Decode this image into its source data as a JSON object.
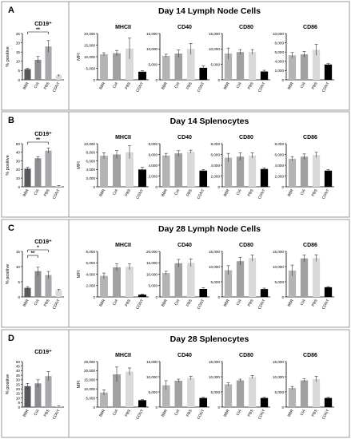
{
  "sections": [
    {
      "letter": "A",
      "title": "Day 14 Lymph Node Cells"
    },
    {
      "letter": "B",
      "title": "Day 14 Splenocytes"
    },
    {
      "letter": "C",
      "title": "Day 28 Lymph Node Cells"
    },
    {
      "letter": "D",
      "title": "Day 28 Splenocytes"
    }
  ],
  "colors": {
    "BBR": "#58595b",
    "CIA": "#8c8d90",
    "PBS": "#a8a9ad",
    "CONT": "#d9d9db",
    "BBR_mfi": "#b3b4b6",
    "CIA_mfi": "#a0a1a3",
    "PBS_mfi": "#d8d9db",
    "CONT_mfi": "#000000",
    "sig": "#c00000",
    "frame": "#9a9a9a"
  },
  "chart_data": [
    {
      "type": "bar",
      "row": 0,
      "title": "CD19⁺",
      "ylabel": "% positive",
      "categories": [
        "BBR",
        "CIA",
        "PBS",
        "CONT"
      ],
      "values": [
        5.8,
        10.8,
        18,
        2.2
      ],
      "errors": [
        0.4,
        1.8,
        3.2,
        0.4
      ],
      "ylim": [
        0,
        25
      ],
      "yticks": [
        0,
        5,
        10,
        15,
        20,
        25
      ],
      "significance": [
        {
          "from": 0,
          "to": 2,
          "label": "**"
        }
      ]
    },
    {
      "type": "bar",
      "row": 0,
      "title": "MHCII",
      "ylabel": "MFI",
      "categories": [
        "BBR",
        "CIA",
        "PBS",
        "CONT"
      ],
      "values": [
        11000,
        11500,
        13500,
        3500
      ],
      "errors": [
        700,
        1200,
        4500,
        400
      ],
      "ylim": [
        0,
        20000
      ],
      "yticks": [
        0,
        5000,
        10000,
        15000,
        20000
      ],
      "yticklabels": [
        "0",
        "5,000",
        "10,000",
        "15,000",
        "20,000"
      ]
    },
    {
      "type": "bar",
      "row": 0,
      "title": "CD40",
      "categories": [
        "BBR",
        "CIA",
        "PBS",
        "CONT"
      ],
      "values": [
        7800,
        8500,
        10000,
        3900
      ],
      "errors": [
        500,
        1200,
        1800,
        600
      ],
      "ylim": [
        0,
        15000
      ],
      "yticks": [
        0,
        5000,
        10000,
        15000
      ],
      "yticklabels": [
        "0",
        "5,000",
        "10,000",
        "15,000"
      ]
    },
    {
      "type": "bar",
      "row": 0,
      "title": "CD80",
      "categories": [
        "BBR",
        "CIA",
        "PBS",
        "CONT"
      ],
      "values": [
        8500,
        9000,
        9000,
        2700
      ],
      "errors": [
        1800,
        800,
        800,
        400
      ],
      "ylim": [
        0,
        15000
      ],
      "yticks": [
        0,
        5000,
        10000,
        15000
      ],
      "yticklabels": [
        "0",
        "5,000",
        "10,000",
        "15,000"
      ]
    },
    {
      "type": "bar",
      "row": 0,
      "title": "CD86",
      "categories": [
        "BBR",
        "CIA",
        "PBS",
        "CONT"
      ],
      "values": [
        5300,
        5500,
        6500,
        3300
      ],
      "errors": [
        600,
        600,
        1200,
        200
      ],
      "ylim": [
        0,
        10000
      ],
      "yticks": [
        0,
        2000,
        4000,
        6000,
        8000,
        10000
      ],
      "yticklabels": [
        "0",
        "2,000",
        "4,000",
        "6,000",
        "8,000",
        "10,000"
      ]
    },
    {
      "type": "bar",
      "row": 1,
      "title": "CD19⁺",
      "ylabel": "% positive",
      "categories": [
        "BBR",
        "CIA",
        "PBS",
        "CONT"
      ],
      "values": [
        21,
        33,
        42,
        1
      ],
      "errors": [
        1.5,
        2,
        3,
        0.5
      ],
      "ylim": [
        0,
        50
      ],
      "yticks": [
        0,
        10,
        20,
        30,
        40,
        50
      ],
      "significance": [
        {
          "from": 0,
          "to": 2,
          "label": "**"
        }
      ]
    },
    {
      "type": "bar",
      "row": 1,
      "title": "MHCII",
      "ylabel": "MFI",
      "categories": [
        "BBR",
        "CIA",
        "PBS",
        "CONT"
      ],
      "values": [
        7200,
        7500,
        8000,
        4000
      ],
      "errors": [
        700,
        900,
        1500,
        500
      ],
      "ylim": [
        0,
        10000
      ],
      "yticks": [
        0,
        2000,
        4000,
        6000,
        8000,
        10000
      ],
      "yticklabels": [
        "0",
        "2,000",
        "4,000",
        "6,000",
        "8,000",
        "10,000"
      ]
    },
    {
      "type": "bar",
      "row": 1,
      "title": "CD40",
      "categories": [
        "BBR",
        "CIA",
        "PBS",
        "CONT"
      ],
      "values": [
        5800,
        6200,
        6500,
        3000
      ],
      "errors": [
        400,
        500,
        300,
        200
      ],
      "ylim": [
        0,
        8000
      ],
      "yticks": [
        0,
        2000,
        4000,
        6000,
        8000
      ],
      "yticklabels": [
        "0",
        "2,000",
        "4,000",
        "6,000",
        "8,000"
      ]
    },
    {
      "type": "bar",
      "row": 1,
      "title": "CD80",
      "categories": [
        "BBR",
        "CIA",
        "PBS",
        "CONT"
      ],
      "values": [
        5400,
        5600,
        5800,
        3300
      ],
      "errors": [
        800,
        700,
        500,
        200
      ],
      "ylim": [
        0,
        8000
      ],
      "yticks": [
        0,
        2000,
        4000,
        6000,
        8000
      ],
      "yticklabels": [
        "0",
        "2,000",
        "4,000",
        "6,000",
        "8,000"
      ]
    },
    {
      "type": "bar",
      "row": 1,
      "title": "CD86",
      "categories": [
        "BBR",
        "CIA",
        "PBS",
        "CONT"
      ],
      "values": [
        5200,
        5600,
        5900,
        3000
      ],
      "errors": [
        400,
        500,
        500,
        200
      ],
      "ylim": [
        0,
        8000
      ],
      "yticks": [
        0,
        2000,
        4000,
        6000,
        8000
      ],
      "yticklabels": [
        "0",
        "2,000",
        "4,000",
        "6,000",
        "8,000"
      ]
    },
    {
      "type": "bar",
      "row": 2,
      "title": "CD19⁺",
      "ylabel": "% positive",
      "categories": [
        "BBR",
        "CIA",
        "PBS",
        "CONT"
      ],
      "values": [
        3,
        8.5,
        7.2,
        2.2
      ],
      "errors": [
        0.4,
        1.3,
        1.2,
        0.3
      ],
      "ylim": [
        0,
        15
      ],
      "yticks": [
        0,
        5,
        10,
        15
      ],
      "significance": [
        {
          "from": 0,
          "to": 2,
          "label": "*"
        },
        {
          "from": 0,
          "to": 1,
          "label": "**"
        }
      ]
    },
    {
      "type": "bar",
      "row": 2,
      "title": "MHCII",
      "ylabel": "MFI",
      "categories": [
        "BBR",
        "CIA",
        "PBS",
        "CONT"
      ],
      "values": [
        3700,
        5200,
        5300,
        400
      ],
      "errors": [
        500,
        600,
        500,
        100
      ],
      "ylim": [
        0,
        8000
      ],
      "yticks": [
        0,
        2000,
        4000,
        6000,
        8000
      ],
      "yticklabels": [
        "0",
        "2,000",
        "4,000",
        "6,000",
        "8,000"
      ]
    },
    {
      "type": "bar",
      "row": 2,
      "title": "CD40",
      "categories": [
        "BBR",
        "CIA",
        "PBS",
        "CONT"
      ],
      "values": [
        10500,
        14800,
        15000,
        3500
      ],
      "errors": [
        800,
        1700,
        1700,
        500
      ],
      "ylim": [
        0,
        20000
      ],
      "yticks": [
        0,
        5000,
        10000,
        15000,
        20000
      ],
      "yticklabels": [
        "0",
        "5,000",
        "10,000",
        "15,000",
        "20,000"
      ]
    },
    {
      "type": "bar",
      "row": 2,
      "title": "CD80",
      "categories": [
        "BBR",
        "CIA",
        "PBS",
        "CONT"
      ],
      "values": [
        8800,
        11800,
        12800,
        2600
      ],
      "errors": [
        1500,
        1300,
        1000,
        300
      ],
      "ylim": [
        0,
        15000
      ],
      "yticks": [
        0,
        5000,
        10000,
        15000
      ],
      "yticklabels": [
        "0",
        "5,000",
        "10,000",
        "15,000"
      ]
    },
    {
      "type": "bar",
      "row": 2,
      "title": "CD86",
      "categories": [
        "BBR",
        "CIA",
        "PBS",
        "CONT"
      ],
      "values": [
        8700,
        12700,
        12800,
        3200
      ],
      "errors": [
        1800,
        1100,
        1100,
        200
      ],
      "ylim": [
        0,
        15000
      ],
      "yticks": [
        0,
        5000,
        10000,
        15000
      ],
      "yticklabels": [
        "0",
        "5,000",
        "10,000",
        "15,000"
      ]
    },
    {
      "type": "bar",
      "row": 3,
      "title": "CD19⁺",
      "ylabel": "% positive",
      "categories": [
        "BBR",
        "CIA",
        "PBS",
        "CONT"
      ],
      "values": [
        23,
        26,
        34,
        1
      ],
      "errors": [
        3,
        4,
        5,
        0.5
      ],
      "ylim": [
        0,
        50
      ],
      "yticks": [
        0,
        5,
        10,
        15,
        20,
        25,
        30,
        35,
        40,
        45,
        50
      ],
      "significance": []
    },
    {
      "type": "bar",
      "row": 3,
      "title": "MHCII",
      "ylabel": "MFI",
      "categories": [
        "BBR",
        "CIA",
        "PBS",
        "CONT"
      ],
      "values": [
        8000,
        18000,
        19500,
        3800
      ],
      "errors": [
        1500,
        4000,
        2000,
        300
      ],
      "ylim": [
        0,
        25000
      ],
      "yticks": [
        0,
        5000,
        10000,
        15000,
        20000,
        25000
      ],
      "yticklabels": [
        "0",
        "5,000",
        "10,000",
        "15,000",
        "20,000",
        "25,000"
      ]
    },
    {
      "type": "bar",
      "row": 3,
      "title": "CD40",
      "categories": [
        "BBR",
        "CIA",
        "PBS",
        "CONT"
      ],
      "values": [
        7200,
        8700,
        9600,
        3000
      ],
      "errors": [
        1500,
        500,
        600,
        200
      ],
      "ylim": [
        0,
        15000
      ],
      "yticks": [
        0,
        5000,
        10000,
        15000
      ],
      "yticklabels": [
        "0",
        "5,000",
        "10,000",
        "15,000"
      ]
    },
    {
      "type": "bar",
      "row": 3,
      "title": "CD80",
      "categories": [
        "BBR",
        "CIA",
        "PBS",
        "CONT"
      ],
      "values": [
        7500,
        8800,
        9900,
        3000
      ],
      "errors": [
        500,
        400,
        500,
        200
      ],
      "ylim": [
        0,
        15000
      ],
      "yticks": [
        0,
        5000,
        10000,
        15000
      ],
      "yticklabels": [
        "0",
        "5,000",
        "10,000",
        "15,000"
      ]
    },
    {
      "type": "bar",
      "row": 3,
      "title": "CD86",
      "categories": [
        "BBR",
        "CIA",
        "PBS",
        "CONT"
      ],
      "values": [
        6300,
        8800,
        9200,
        3000
      ],
      "errors": [
        500,
        500,
        900,
        200
      ],
      "ylim": [
        0,
        15000
      ],
      "yticks": [
        0,
        5000,
        10000,
        15000
      ],
      "yticklabels": [
        "0",
        "5,000",
        "10,000",
        "15,000"
      ]
    }
  ]
}
